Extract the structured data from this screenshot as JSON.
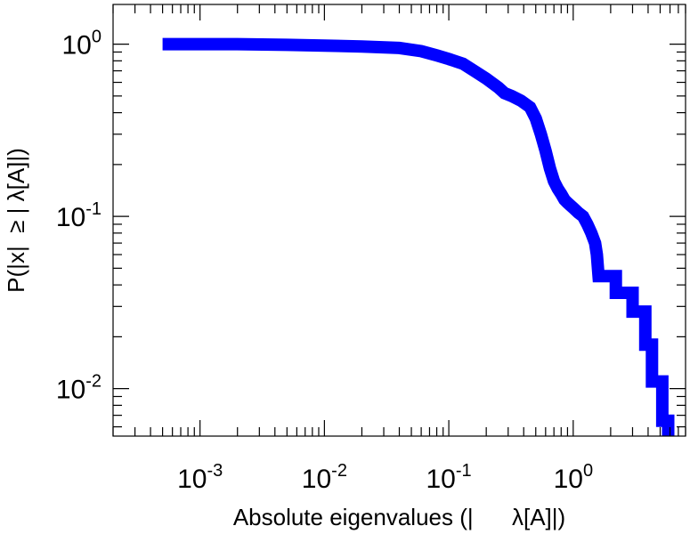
{
  "chart_data": {
    "type": "line",
    "title": "",
    "xlabel": "Absolute eigenvalues (|      λ[A]|)",
    "ylabel": "P(|x|  ≥ | λ[A]|)",
    "xscale": "log",
    "yscale": "log",
    "xlim": [
      0.0002,
      8
    ],
    "ylim": [
      0.0053,
      1.7
    ],
    "grid": false,
    "legend": "none",
    "line_color": "#0000ff",
    "x_ticks": [
      {
        "value": 0.001,
        "base": "10",
        "exp": "-3"
      },
      {
        "value": 0.01,
        "base": "10",
        "exp": "-2"
      },
      {
        "value": 0.1,
        "base": "10",
        "exp": "-1"
      },
      {
        "value": 1,
        "base": "10",
        "exp": "0"
      }
    ],
    "y_ticks": [
      {
        "value": 0.01,
        "base": "10",
        "exp": "-2"
      },
      {
        "value": 0.1,
        "base": "10",
        "exp": "-1"
      },
      {
        "value": 1,
        "base": "10",
        "exp": "0"
      }
    ],
    "series": [
      {
        "x": [
          0.0005,
          0.002,
          0.005,
          0.01,
          0.02,
          0.04,
          0.06,
          0.08,
          0.1,
          0.13,
          0.16,
          0.2,
          0.25,
          0.28,
          0.32,
          0.38,
          0.45,
          0.5,
          0.55,
          0.6,
          0.65,
          0.7,
          0.75,
          0.8,
          0.85,
          0.9,
          1.0,
          1.1,
          1.2,
          1.3,
          1.4,
          1.5,
          1.55,
          1.6,
          1.6,
          2.2,
          2.2,
          3.0,
          3.0,
          3.8,
          3.8,
          4.3,
          4.3,
          5.2,
          5.2,
          5.8,
          5.8
        ],
        "y": [
          1.0,
          1.0,
          0.99,
          0.98,
          0.97,
          0.95,
          0.91,
          0.86,
          0.82,
          0.77,
          0.7,
          0.63,
          0.56,
          0.52,
          0.5,
          0.47,
          0.43,
          0.37,
          0.3,
          0.24,
          0.19,
          0.16,
          0.145,
          0.135,
          0.125,
          0.12,
          0.112,
          0.105,
          0.1,
          0.09,
          0.08,
          0.07,
          0.06,
          0.045,
          0.045,
          0.045,
          0.036,
          0.036,
          0.028,
          0.028,
          0.018,
          0.018,
          0.011,
          0.011,
          0.0065,
          0.0065,
          0.0053
        ]
      }
    ]
  }
}
